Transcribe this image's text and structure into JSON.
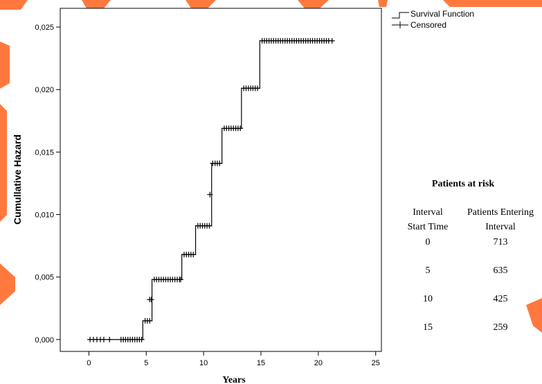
{
  "colors": {
    "decoration": "#ff6a2a",
    "line": "#000000",
    "background": "#ffffff"
  },
  "chart_data": {
    "type": "line",
    "step": true,
    "xlabel": "Years",
    "ylabel": "Cumullative Hazard",
    "xlim": [
      -2.5,
      25.5
    ],
    "ylim": [
      -0.00095,
      0.0265
    ],
    "x_ticks": [
      0,
      5,
      10,
      15,
      20,
      25
    ],
    "y_ticks": [
      0.0,
      0.005,
      0.01,
      0.015,
      0.02,
      0.025
    ],
    "y_tick_labels": [
      "0,000",
      "0,005",
      "0,010",
      "0,015",
      "0,020",
      "0,025"
    ],
    "grid": false,
    "legend": {
      "placement": "top-right",
      "entries": [
        "Survival Function",
        "Censored"
      ]
    },
    "series": [
      {
        "name": "Survival Function",
        "x": [
          0,
          4.7,
          5.5,
          8.1,
          9.3,
          10.7,
          11.6,
          13.3,
          14.9,
          21.2
        ],
        "y": [
          0.0,
          0.0015,
          0.0048,
          0.0068,
          0.0091,
          0.0141,
          0.0169,
          0.0201,
          0.0239,
          0.0239
        ]
      },
      {
        "name": "Censored",
        "censor_groups": [
          {
            "y": 0.0,
            "x": [
              0.1,
              0.4,
              0.7,
              1.0,
              1.3,
              1.8,
              2.8,
              3.0,
              3.2,
              3.4,
              3.6,
              3.8,
              4.0,
              4.2,
              4.4,
              4.6
            ]
          },
          {
            "y": 0.0015,
            "x": [
              4.9,
              5.1,
              5.3
            ]
          },
          {
            "y": 0.0032,
            "x": [
              5.3,
              5.45
            ]
          },
          {
            "y": 0.0048,
            "x": [
              5.7,
              5.9,
              6.1,
              6.3,
              6.5,
              6.7,
              6.9,
              7.1,
              7.3,
              7.5,
              7.7,
              7.9,
              8.0
            ]
          },
          {
            "y": 0.0068,
            "x": [
              8.3,
              8.5,
              8.7,
              8.9,
              9.1
            ]
          },
          {
            "y": 0.0091,
            "x": [
              9.5,
              9.7,
              9.9,
              10.1,
              10.3,
              10.5
            ]
          },
          {
            "y": 0.0116,
            "x": [
              10.55
            ]
          },
          {
            "y": 0.0141,
            "x": [
              10.8,
              11.0,
              11.2,
              11.4
            ]
          },
          {
            "y": 0.0169,
            "x": [
              11.8,
              12.0,
              12.2,
              12.4,
              12.6,
              12.8,
              13.0,
              13.2
            ]
          },
          {
            "y": 0.0201,
            "x": [
              13.5,
              13.7,
              13.9,
              14.1,
              14.3,
              14.5,
              14.7
            ]
          },
          {
            "y": 0.0239,
            "x": [
              15.1,
              15.3,
              15.5,
              15.7,
              15.9,
              16.1,
              16.3,
              16.5,
              16.7,
              16.9,
              17.1,
              17.3,
              17.5,
              17.7,
              17.9,
              18.1,
              18.3,
              18.5,
              18.7,
              18.9,
              19.1,
              19.3,
              19.5,
              19.7,
              19.9,
              20.1,
              20.3,
              20.5,
              20.7,
              20.9,
              21.2
            ]
          }
        ]
      }
    ]
  },
  "risk_table": {
    "title": "Patients at risk",
    "header_col1_line1": "Interval",
    "header_col1_line2": "Start Time",
    "header_col2_line1": "Patients Entering",
    "header_col2_line2": "Interval",
    "rows": [
      {
        "start": "0",
        "entering": "713"
      },
      {
        "start": "5",
        "entering": "635"
      },
      {
        "start": "10",
        "entering": "425"
      },
      {
        "start": "15",
        "entering": "259"
      }
    ]
  }
}
